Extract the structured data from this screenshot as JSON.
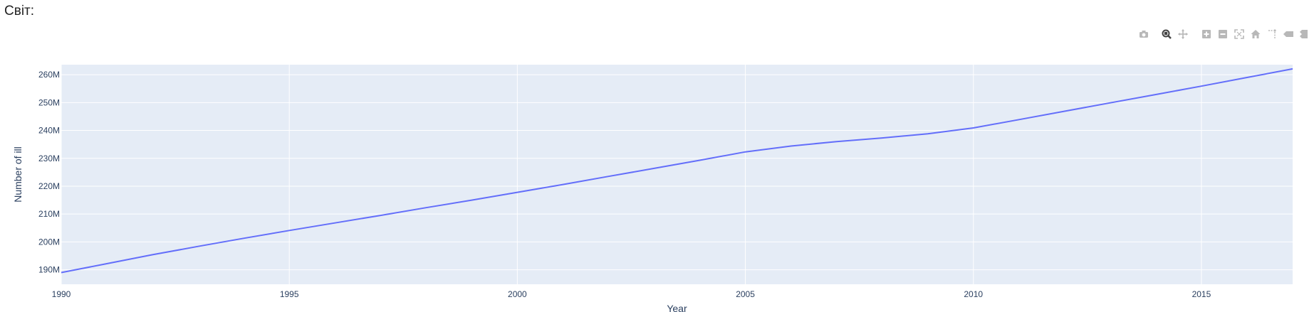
{
  "page": {
    "title": "Світ:"
  },
  "modebar": {
    "buttons": [
      {
        "name": "camera-icon",
        "active": false
      },
      {
        "name": "zoom-icon",
        "active": true
      },
      {
        "name": "pan-icon",
        "active": false
      },
      {
        "name": "zoom-in-icon",
        "active": false
      },
      {
        "name": "zoom-out-icon",
        "active": false
      },
      {
        "name": "autoscale-icon",
        "active": false
      },
      {
        "name": "home-icon",
        "active": false
      },
      {
        "name": "spikelines-icon",
        "active": false
      },
      {
        "name": "hover-closest-icon",
        "active": false
      },
      {
        "name": "hover-compare-icon",
        "active": false
      }
    ]
  },
  "chart_data": {
    "type": "line",
    "title": "",
    "xlabel": "Year",
    "ylabel": "Number of ill",
    "xlim": [
      1990,
      2017
    ],
    "ylim": [
      184.8,
      263.6
    ],
    "x_ticks": [
      1990,
      1995,
      2000,
      2005,
      2010,
      2015
    ],
    "y_ticks": [
      190,
      200,
      210,
      220,
      230,
      240,
      250,
      260
    ],
    "y_tick_labels": [
      "190M",
      "200M",
      "210M",
      "220M",
      "230M",
      "240M",
      "250M",
      "260M"
    ],
    "grid": true,
    "colors": {
      "line": "#636efa",
      "plot_bg": "#e5ecf6",
      "grid": "#ffffff",
      "text": "#2a3f5f"
    },
    "series": [
      {
        "x": [
          1990,
          1991,
          1992,
          1993,
          1994,
          1995,
          1996,
          1997,
          1998,
          1999,
          2000,
          2001,
          2002,
          2003,
          2004,
          2005,
          2006,
          2007,
          2008,
          2009,
          2010,
          2011,
          2012,
          2013,
          2014,
          2015,
          2016,
          2017
        ],
        "y": [
          189.0,
          192.2,
          195.4,
          198.4,
          201.3,
          204.1,
          206.8,
          209.5,
          212.3,
          215.0,
          217.8,
          220.6,
          223.5,
          226.4,
          229.3,
          232.3,
          234.4,
          236.0,
          237.3,
          238.8,
          240.9,
          243.9,
          246.9,
          249.9,
          252.9,
          255.9,
          259.0,
          262.1
        ]
      }
    ]
  }
}
